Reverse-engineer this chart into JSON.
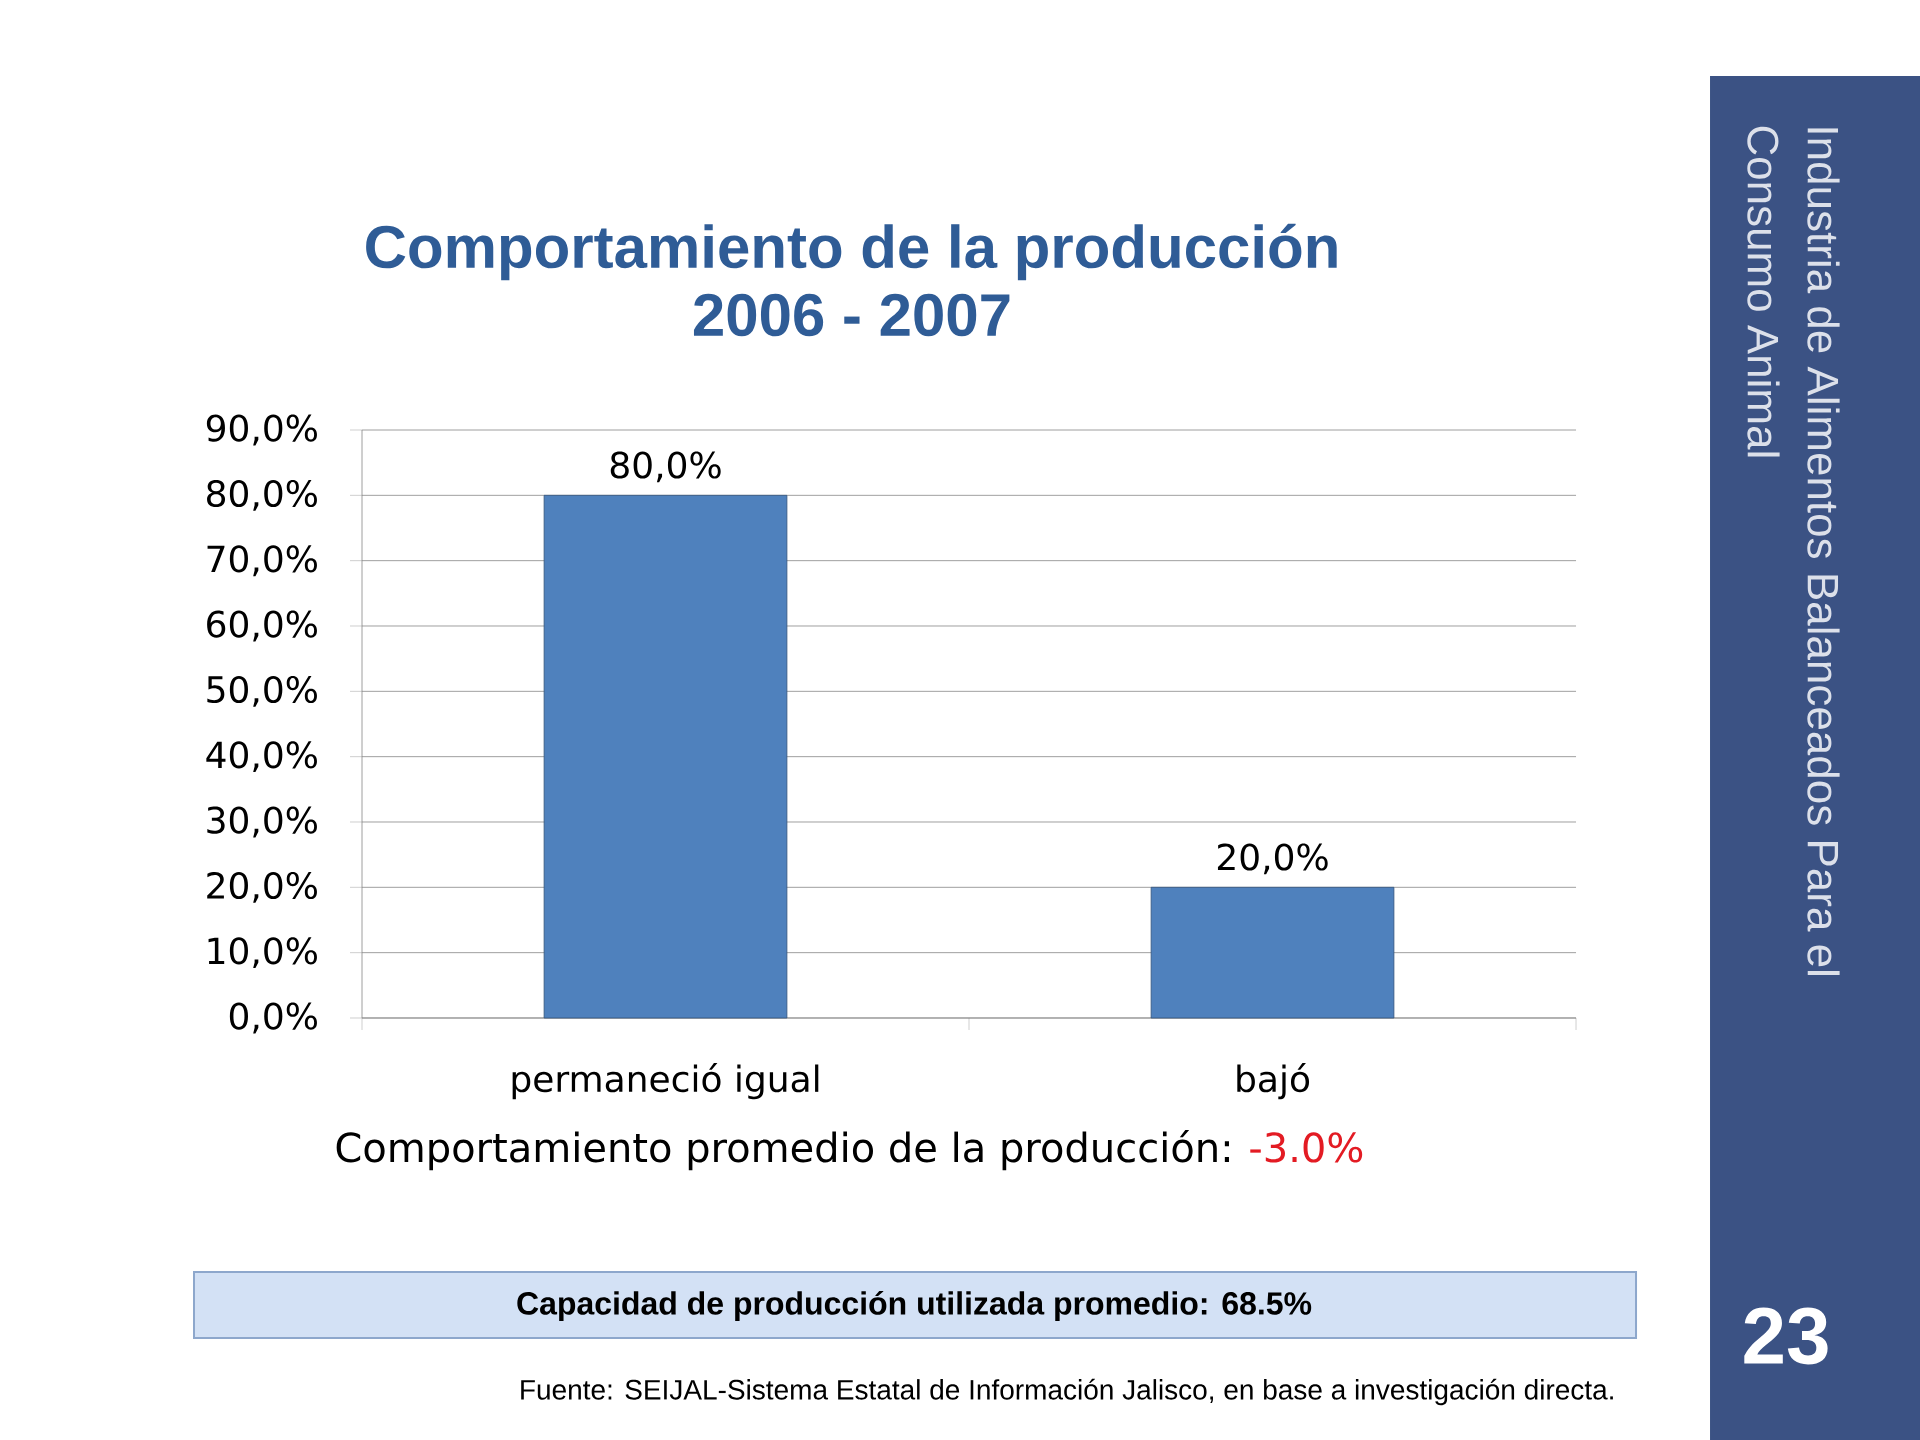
{
  "chart_data": {
    "type": "bar",
    "title": "Comportamiento de la producción 2006 - 2007",
    "categories": [
      "permaneció igual",
      "bajó"
    ],
    "values": [
      80,
      20
    ],
    "value_labels": [
      "80,0%",
      "20,0%"
    ],
    "color": "#4f81bd",
    "ylim": [
      0,
      90
    ],
    "yticks": [
      {
        "value": 0,
        "label": "0,0%"
      },
      {
        "value": 10,
        "label": "10,0%"
      },
      {
        "value": 20,
        "label": "20,0%"
      },
      {
        "value": 30,
        "label": "30,0%"
      },
      {
        "value": 40,
        "label": "40,0%"
      },
      {
        "value": 50,
        "label": "50,0%"
      },
      {
        "value": 60,
        "label": "60,0%"
      },
      {
        "value": 70,
        "label": "70,0%"
      },
      {
        "value": 80,
        "label": "80,0%"
      },
      {
        "value": 90,
        "label": "90,0%"
      }
    ],
    "grid": "y",
    "annotations": [
      "Comportamiento promedio de la producción:",
      "-3.0%",
      "Capacidad de producción utilizada promedio: 68.5%",
      "Fuente: SEIJAL-Sistema Estatal de Información Jalisco, en base a investigación directa.",
      "Industria de Alimentos Balanceados Para el Consumo Animal",
      "23"
    ]
  }
}
